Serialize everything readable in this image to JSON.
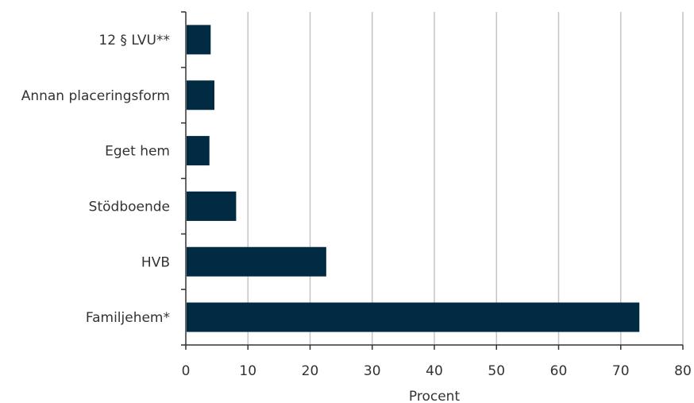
{
  "chart_data": {
    "type": "bar",
    "orientation": "horizontal",
    "categories": [
      "12 § LVU**",
      "Annan placeringsform",
      "Eget hem",
      "Stödboende",
      "HVB",
      "Familjehem*"
    ],
    "values": [
      4,
      4.6,
      3.8,
      8.1,
      22.6,
      73
    ],
    "xlabel": "Procent",
    "xlim": [
      0,
      80
    ],
    "xticks": [
      0,
      10,
      20,
      30,
      40,
      50,
      60,
      70,
      80
    ],
    "grid": "vertical",
    "bar_color": "#012a43"
  }
}
